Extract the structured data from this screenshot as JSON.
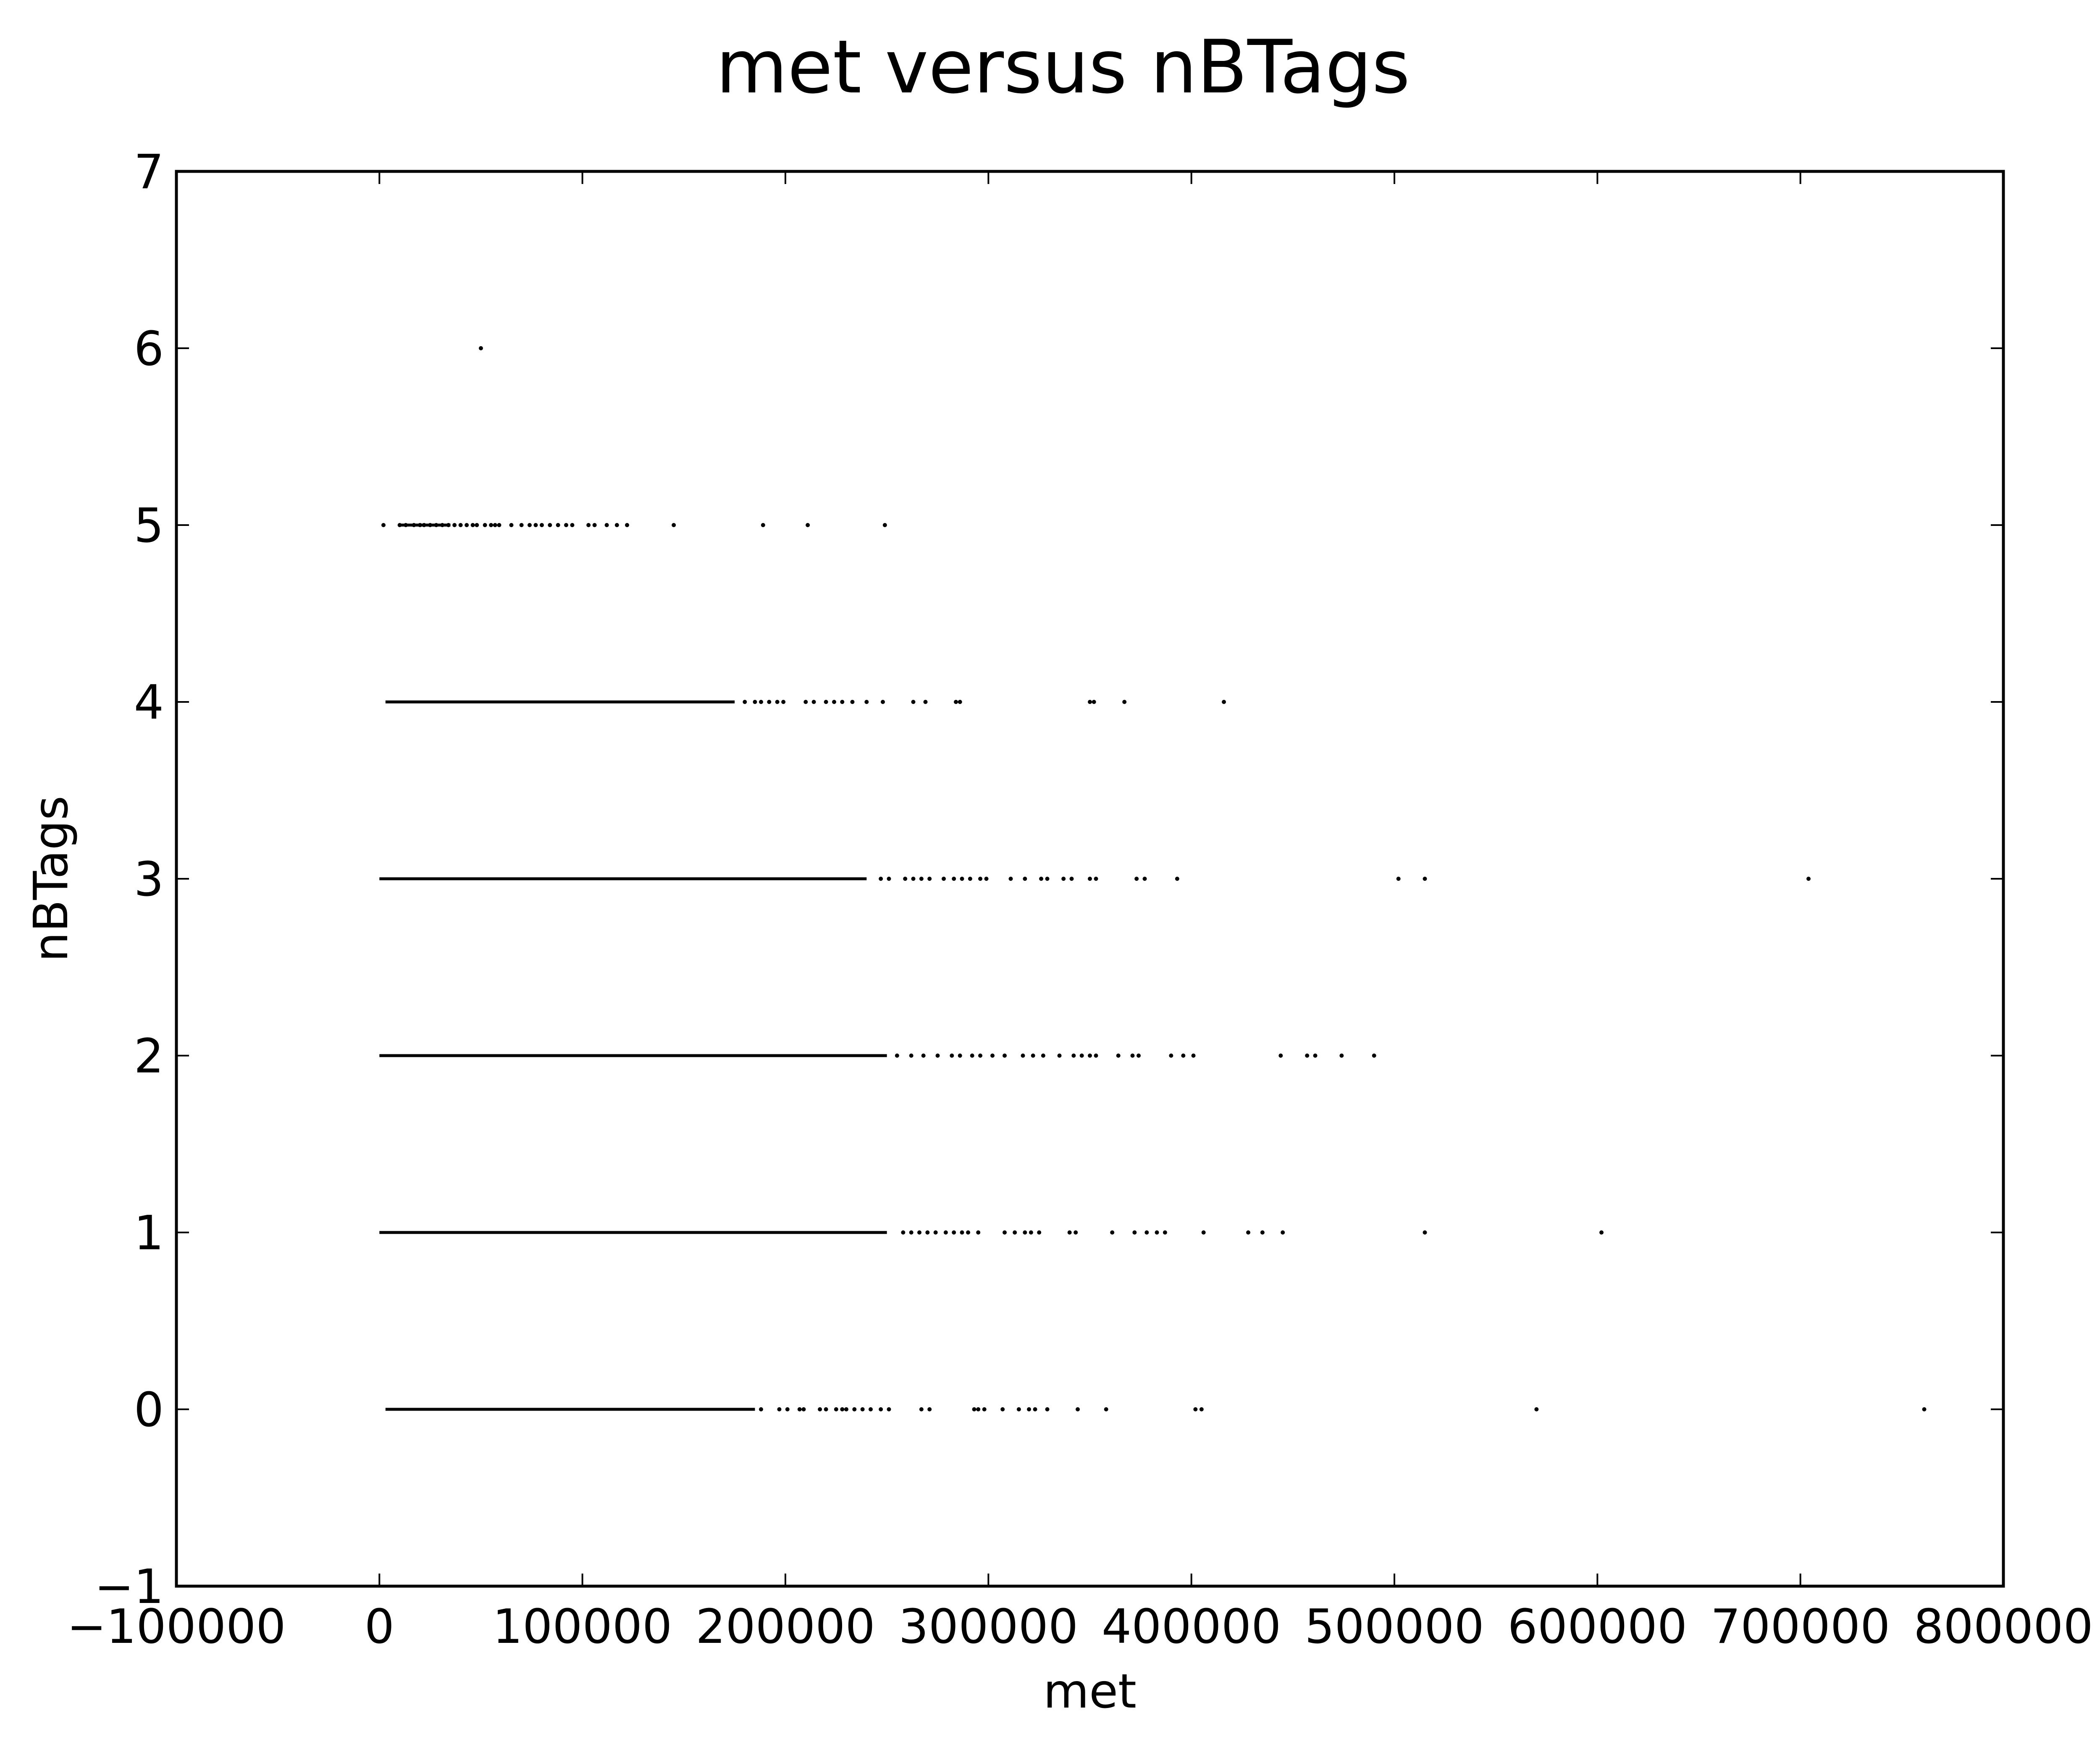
{
  "chart_data": {
    "type": "scatter",
    "title": "met versus nBTags",
    "xlabel": "met",
    "ylabel": "nBTags",
    "xlim": [
      -100000,
      800000
    ],
    "ylim": [
      -1,
      7
    ],
    "xticks": [
      -100000,
      0,
      100000,
      200000,
      300000,
      400000,
      500000,
      600000,
      700000,
      800000
    ],
    "xtick_labels": [
      "−100000",
      "0",
      "100000",
      "200000",
      "300000",
      "400000",
      "500000",
      "600000",
      "700000",
      "800000"
    ],
    "yticks": [
      -1,
      0,
      1,
      2,
      3,
      4,
      5,
      6,
      7
    ],
    "ytick_labels": [
      "−1",
      "0",
      "1",
      "2",
      "3",
      "4",
      "5",
      "6",
      "7"
    ],
    "grid": false,
    "marker_color": "#000000",
    "series": [
      {
        "bands": [
          {
            "y": 0,
            "dense_range": [
              3000,
              185000
            ],
            "points": [
              188000,
              197000,
              201000,
              207000,
              209000,
              217000,
              220000,
              225000,
              228000,
              230000,
              234000,
              238000,
              242000,
              247000,
              251000,
              267000,
              271000,
              293000,
              295000,
              298000,
              307000,
              315000,
              320000,
              323000,
              329000,
              344000,
              358000,
              402000,
              405000,
              570000,
              761000
            ]
          },
          {
            "y": 1,
            "dense_range": [
              0,
              250000
            ],
            "points": [
              258000,
              262000,
              266000,
              270000,
              274000,
              279000,
              283000,
              287000,
              290000,
              295000,
              308000,
              313000,
              318000,
              321000,
              325000,
              340000,
              343000,
              361000,
              372000,
              378000,
              383000,
              387000,
              406000,
              428000,
              435000,
              445000,
              515000,
              602000
            ]
          },
          {
            "y": 2,
            "dense_range": [
              0,
              250000
            ],
            "points": [
              255000,
              262000,
              268000,
              275000,
              282000,
              286000,
              292000,
              296000,
              302000,
              308000,
              317000,
              322000,
              327000,
              335000,
              342000,
              346000,
              350000,
              353000,
              364000,
              371000,
              374000,
              390000,
              396000,
              401000,
              444000,
              457000,
              461000,
              474000,
              490000
            ]
          },
          {
            "y": 3,
            "dense_range": [
              0,
              240000
            ],
            "points": [
              247000,
              251000,
              259000,
              263000,
              267000,
              271000,
              278000,
              283000,
              287000,
              291000,
              296000,
              299000,
              311000,
              318000,
              326000,
              329000,
              337000,
              341000,
              350000,
              353000,
              373000,
              377000,
              393000,
              502000,
              515000,
              704000
            ]
          },
          {
            "y": 4,
            "dense_range": [
              3000,
              175000
            ],
            "points": [
              180000,
              185000,
              188000,
              192000,
              196000,
              199000,
              210000,
              214000,
              220000,
              224000,
              228000,
              233000,
              240000,
              248000,
              263000,
              269000,
              284000,
              286000,
              350000,
              352000,
              367000,
              416000
            ]
          },
          {
            "y": 5,
            "dense_range": [
              10000,
              35000
            ],
            "points": [
              2000,
              10000,
              13000,
              17000,
              20000,
              22000,
              25000,
              28000,
              31000,
              34000,
              37000,
              40000,
              43000,
              46000,
              48000,
              52000,
              55000,
              57000,
              59000,
              65000,
              70000,
              74000,
              77000,
              80000,
              84000,
              88000,
              92000,
              95000,
              103000,
              106000,
              112000,
              117000,
              122000,
              145000,
              189000,
              211000,
              249000
            ]
          },
          {
            "y": 6,
            "dense_range": [],
            "points": [
              50000
            ]
          }
        ]
      }
    ]
  }
}
